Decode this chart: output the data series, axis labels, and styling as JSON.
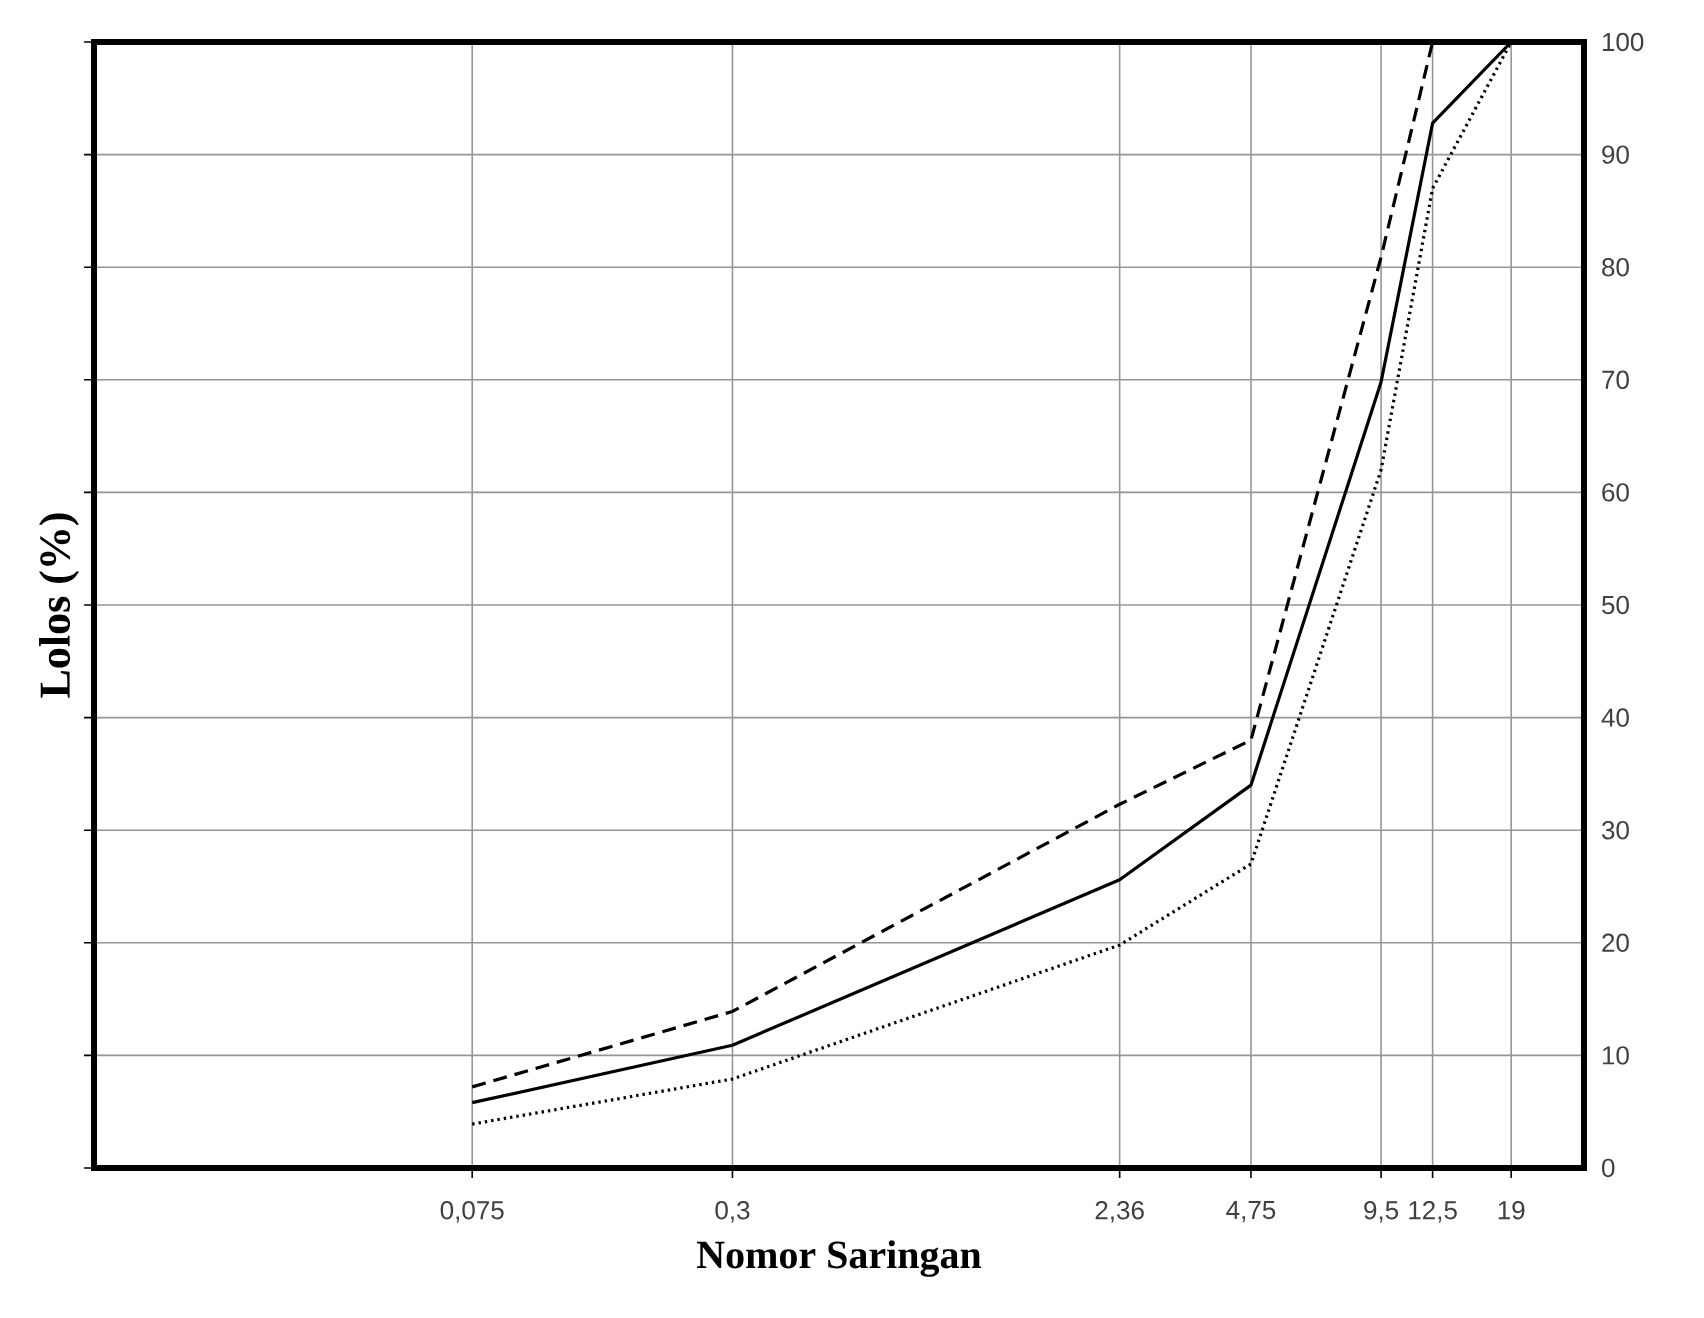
{
  "chart_data": {
    "type": "line",
    "xlabel": "Nomor Saringan",
    "ylabel": "Lolos (%)",
    "log": "x",
    "x": [
      0.075,
      0.3,
      2.36,
      4.75,
      9.5,
      12.5,
      19
    ],
    "xlim": [
      0.01,
      28
    ],
    "xticks": [
      {
        "value": 0.075,
        "label": "0,075"
      },
      {
        "value": 0.3,
        "label": "0,3"
      },
      {
        "value": 2.36,
        "label": "2,36"
      },
      {
        "value": 4.75,
        "label": "4,75"
      },
      {
        "value": 9.5,
        "label": "9,5"
      },
      {
        "value": 12.5,
        "label": "12,5"
      },
      19
    ],
    "ylim": [
      0,
      100
    ],
    "yticks": [
      0,
      10,
      20,
      30,
      40,
      50,
      60,
      70,
      80,
      90,
      100
    ],
    "grid": true,
    "series": [
      {
        "color": "#000000",
        "line_style": "solid",
        "values": [
          5.8,
          10.9,
          25.6,
          34,
          69.8,
          92.8,
          100
        ]
      },
      {
        "color": "#000000",
        "line_style": "dashed",
        "values": [
          7.2,
          13.9,
          32.3,
          38,
          80.9,
          100,
          100
        ]
      },
      {
        "color": "#000000",
        "line_style": "dotted",
        "values": [
          3.9,
          7.9,
          19.8,
          27,
          62,
          87,
          100
        ]
      }
    ]
  }
}
